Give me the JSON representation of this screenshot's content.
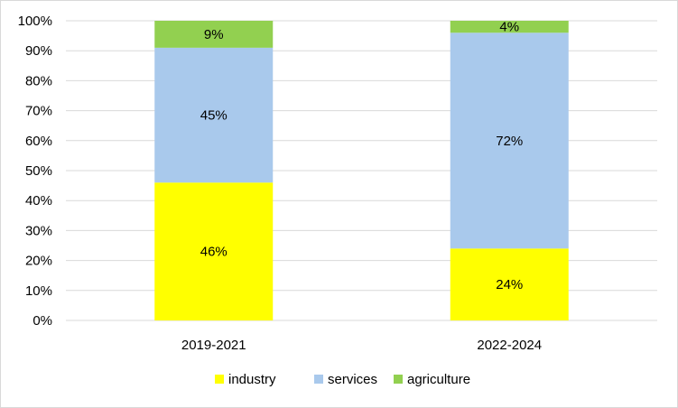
{
  "chart_data": {
    "type": "bar",
    "stacked": true,
    "percent": true,
    "categories": [
      "2019-2021",
      "2022-2024"
    ],
    "series": [
      {
        "name": "industry",
        "values": [
          46,
          24
        ],
        "labels": [
          "46%",
          "24%"
        ],
        "color": "#ffff00"
      },
      {
        "name": "services",
        "values": [
          45,
          72
        ],
        "labels": [
          "45%",
          "72%"
        ],
        "color": "#a9c9ec"
      },
      {
        "name": "agriculture",
        "values": [
          9,
          4
        ],
        "labels": [
          "9%",
          "4%"
        ],
        "color": "#92d050"
      }
    ],
    "y_ticks": [
      "0%",
      "10%",
      "20%",
      "30%",
      "40%",
      "50%",
      "60%",
      "70%",
      "80%",
      "90%",
      "100%"
    ],
    "ylim": [
      0,
      100
    ],
    "grid": true,
    "legend": "bottom",
    "title": "",
    "xlabel": "",
    "ylabel": ""
  }
}
